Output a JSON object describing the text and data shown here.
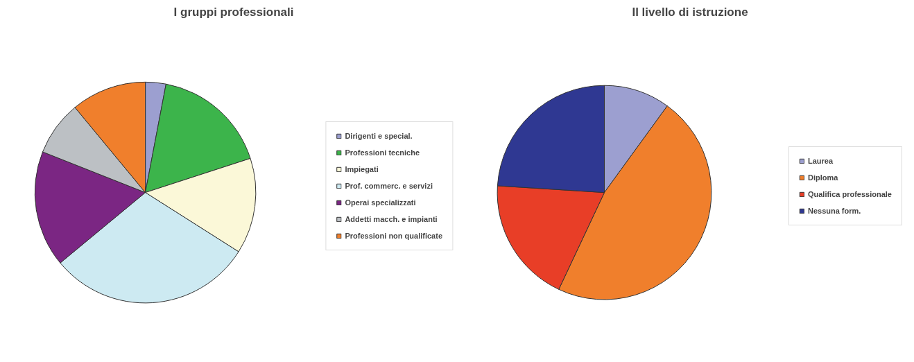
{
  "chart_data": [
    {
      "type": "pie",
      "title": "I gruppi professionali",
      "legend": "right",
      "categories": [
        "Dirigenti e special.",
        "Professioni tecniche",
        "Impiegati",
        "Prof. commerc. e servizi",
        "Operai specializzati",
        "Addetti macch. e impianti",
        "Professioni non qualificate"
      ],
      "values": [
        3,
        17,
        14,
        30,
        17,
        8,
        11
      ],
      "colors": [
        "#9c9fd0",
        "#3cb44b",
        "#fbf8d8",
        "#cdeaf2",
        "#7b2683",
        "#bcc0c4",
        "#f07f2c"
      ]
    },
    {
      "type": "pie",
      "title": "Il livello di istruzione",
      "legend": "right",
      "categories": [
        "Laurea",
        "Diploma",
        "Qualifica professionale",
        "Nessuna form."
      ],
      "values": [
        10,
        47,
        19,
        24
      ],
      "colors": [
        "#9c9fd0",
        "#f07f2c",
        "#e83e27",
        "#2f3892"
      ]
    }
  ]
}
